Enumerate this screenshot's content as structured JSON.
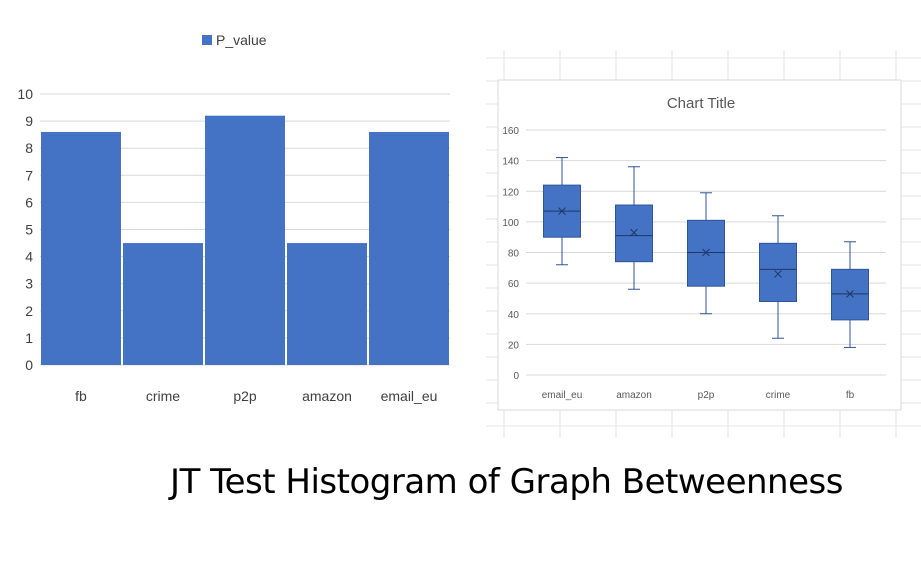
{
  "caption": "JT Test Histogram of Graph Betweenness",
  "chart_data": [
    {
      "type": "bar",
      "title": "",
      "legend": "top-center",
      "categories": [
        "fb",
        "crime",
        "p2p",
        "amazon",
        "email_eu"
      ],
      "series": [
        {
          "name": "P_value",
          "values": [
            8.6,
            4.5,
            9.2,
            4.5,
            8.6
          ]
        }
      ],
      "ylim": [
        0,
        10
      ],
      "yticks": [
        0,
        1,
        2,
        3,
        4,
        5,
        6,
        7,
        8,
        9,
        10
      ],
      "grid": true,
      "colors": {
        "bar": "#4472c4",
        "grid": "#d9d9d9"
      }
    },
    {
      "type": "box",
      "title": "Chart Title",
      "categories": [
        "email_eu",
        "amazon",
        "p2p",
        "crime",
        "fb"
      ],
      "boxes": [
        {
          "min": 72,
          "q1": 90,
          "median": 107,
          "q3": 124,
          "max": 142,
          "mean": 107
        },
        {
          "min": 56,
          "q1": 74,
          "median": 91,
          "q3": 111,
          "max": 136,
          "mean": 93
        },
        {
          "min": 40,
          "q1": 58,
          "median": 80,
          "q3": 101,
          "max": 119,
          "mean": 80
        },
        {
          "min": 24,
          "q1": 48,
          "median": 69,
          "q3": 86,
          "max": 104,
          "mean": 66
        },
        {
          "min": 18,
          "q1": 36,
          "median": 53,
          "q3": 69,
          "max": 87,
          "mean": 53
        }
      ],
      "ylim": [
        0,
        160
      ],
      "yticks": [
        0,
        20,
        40,
        60,
        80,
        100,
        120,
        140,
        160
      ],
      "grid": true,
      "colors": {
        "box": "#4472c4",
        "box_edge": "#2f5597",
        "grid": "#d9d9d9"
      }
    }
  ]
}
